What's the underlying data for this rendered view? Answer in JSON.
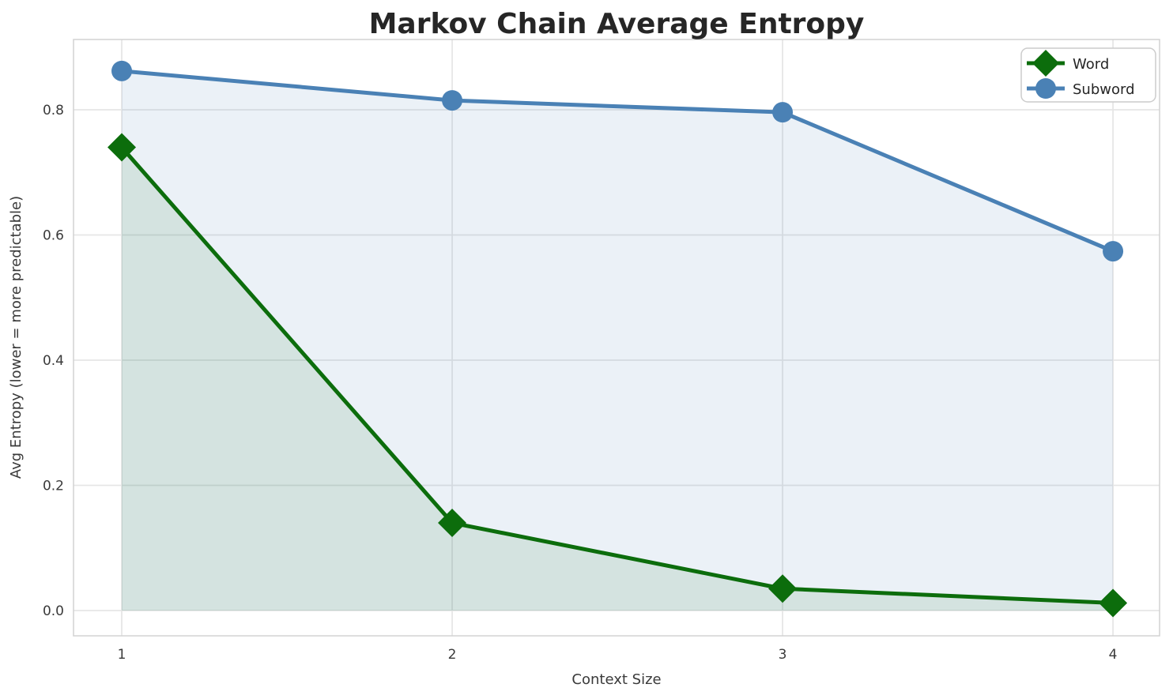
{
  "figure": {
    "background": "#ffffff"
  },
  "colors": {
    "word": "#0c6d0c",
    "subword": "#4a81b5",
    "grid": "#e6e6e6",
    "spine": "#d2d2d2",
    "title_text": "#262626",
    "tick_text": "#3a3a3a",
    "legend_border": "#cccccc"
  },
  "chart_data": {
    "type": "line",
    "title": "Markov Chain Average Entropy",
    "xlabel": "Context Size",
    "ylabel": "Avg Entropy (lower = more predictable)",
    "x": [
      1,
      2,
      3,
      4
    ],
    "series": [
      {
        "name": "Word",
        "values": [
          0.74,
          0.14,
          0.035,
          0.012
        ],
        "color": "#0c6d0c",
        "marker": "diamond",
        "fill_to_zero": true,
        "fill_opacity": 0.1
      },
      {
        "name": "Subword",
        "values": [
          0.862,
          0.815,
          0.796,
          0.574
        ],
        "color": "#4a81b5",
        "marker": "circle",
        "fill_to_zero": true,
        "fill_opacity": 0.11
      }
    ],
    "xticks": [
      1,
      2,
      3,
      4
    ],
    "xticklabels": [
      "1",
      "2",
      "3",
      "4"
    ],
    "yticks": [
      0.0,
      0.2,
      0.4,
      0.6,
      0.8
    ],
    "yticklabels": [
      "0.0",
      "0.2",
      "0.4",
      "0.6",
      "0.8"
    ],
    "xlim": [
      0.854,
      4.141
    ],
    "ylim": [
      -0.0404,
      0.9123
    ],
    "grid": true,
    "legend_position": "upper right"
  }
}
